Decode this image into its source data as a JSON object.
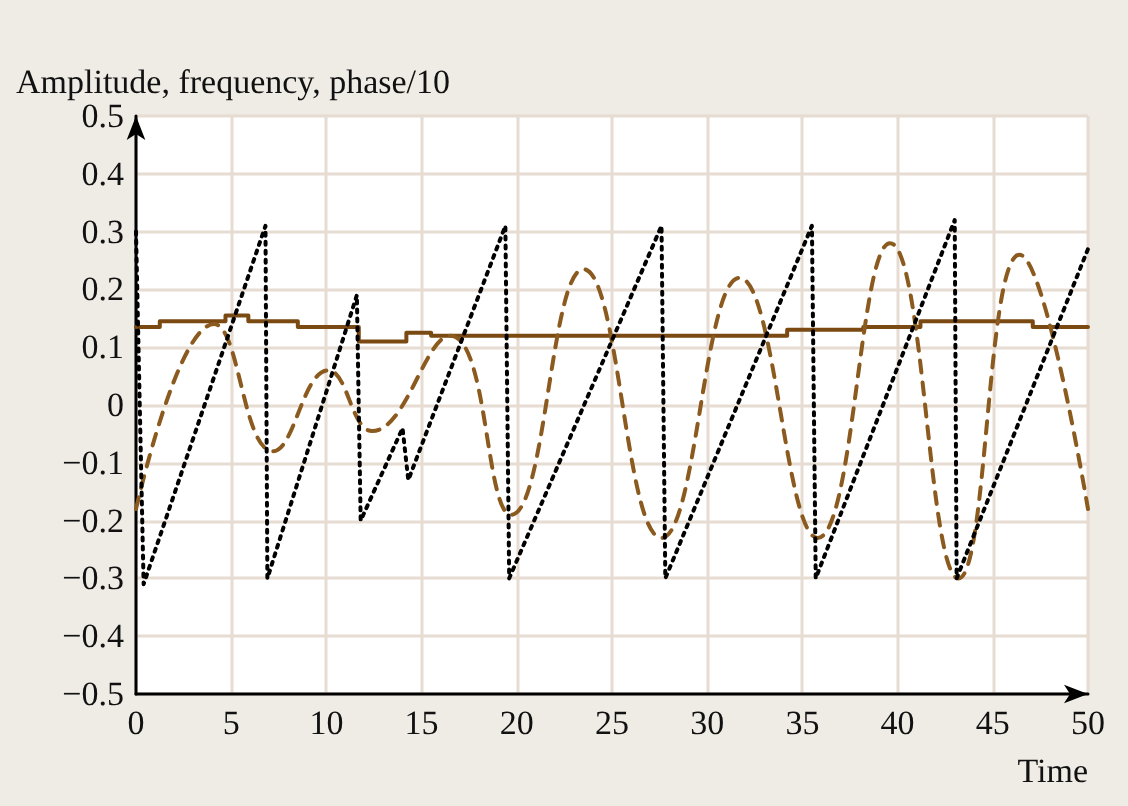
{
  "chart_data": {
    "type": "line",
    "xlabel": "Time",
    "ylabel": "Amplitude, frequency, phase/10",
    "xlim": [
      0,
      50
    ],
    "ylim": [
      -0.5,
      0.5
    ],
    "xticks": [
      0,
      5,
      10,
      15,
      20,
      25,
      30,
      35,
      40,
      45,
      50
    ],
    "yticks": [
      {
        "value": -0.5,
        "label": "−0.5"
      },
      {
        "value": -0.4,
        "label": "−0.4"
      },
      {
        "value": -0.3,
        "label": "−0.3"
      },
      {
        "value": -0.2,
        "label": "−0.2"
      },
      {
        "value": -0.1,
        "label": "−0.1"
      },
      0,
      0.1,
      0.2,
      0.3,
      0.4,
      0.5
    ],
    "grid": true,
    "series": [
      {
        "type": "step",
        "color": "#7b4a12",
        "line_style": "solid",
        "x": [
          0,
          1.25,
          4.7,
          5.9,
          8.5,
          11.7,
          14.2,
          15.5,
          34.2,
          38.2,
          41.2,
          47.1,
          50
        ],
        "values": [
          0.135,
          0.145,
          0.155,
          0.145,
          0.135,
          0.11,
          0.125,
          0.12,
          0.13,
          0.135,
          0.145,
          0.135,
          0.135
        ]
      },
      {
        "type": "line",
        "color": "#8b5a1e",
        "line_style": "dashed",
        "x": [
          0,
          4.1,
          7.2,
          10.1,
          12.4,
          16.5,
          19.7,
          23.5,
          27.6,
          31.7,
          35.8,
          39.6,
          43.2,
          46.4,
          50
        ],
        "values": [
          -0.18,
          0.14,
          -0.08,
          0.06,
          -0.045,
          0.12,
          -0.19,
          0.235,
          -0.23,
          0.22,
          -0.23,
          0.28,
          -0.3,
          0.26,
          -0.18
        ]
      },
      {
        "type": "line",
        "color": "#000000",
        "line_style": "dotted",
        "x": [
          0,
          0.4,
          6.8,
          6.9,
          11.6,
          11.8,
          14.0,
          14.3,
          19.4,
          19.6,
          27.6,
          27.8,
          35.5,
          35.7,
          43.0,
          43.1,
          50
        ],
        "values": [
          0.3,
          -0.31,
          0.31,
          -0.3,
          0.19,
          -0.2,
          -0.04,
          -0.13,
          0.31,
          -0.3,
          0.31,
          -0.3,
          0.31,
          -0.3,
          0.32,
          -0.3,
          0.27
        ]
      }
    ]
  }
}
